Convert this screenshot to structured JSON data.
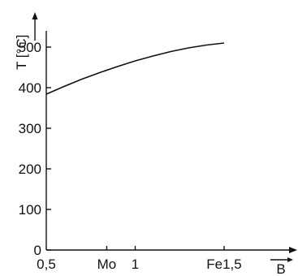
{
  "chart_data": {
    "type": "line",
    "title": "",
    "xlabel": "B",
    "ylabel": "T [°C]",
    "xlim": [
      0.5,
      1.5
    ],
    "ylim": [
      0,
      500
    ],
    "xticks": [
      {
        "value": 0.5,
        "label": "0,5"
      },
      {
        "value": 0.84,
        "label": "Mo"
      },
      {
        "value": 1.0,
        "label": "1"
      },
      {
        "value": 1.5,
        "label": "Fe1,5"
      }
    ],
    "yticks": [
      {
        "value": 0,
        "label": "0"
      },
      {
        "value": 100,
        "label": "100"
      },
      {
        "value": 200,
        "label": "200"
      },
      {
        "value": 300,
        "label": "300"
      },
      {
        "value": 400,
        "label": "400"
      },
      {
        "value": 500,
        "label": "500"
      }
    ],
    "series": [
      {
        "x": [
          0.5,
          0.6,
          0.7,
          0.8,
          0.9,
          1.0,
          1.1,
          1.2,
          1.3,
          1.4,
          1.5
        ],
        "values": [
          384,
          403,
          421,
          437,
          452,
          466,
          478,
          489,
          498,
          505,
          510
        ]
      }
    ],
    "grid": false,
    "colors": {
      "line": "#111111",
      "axes": "#111111"
    }
  }
}
